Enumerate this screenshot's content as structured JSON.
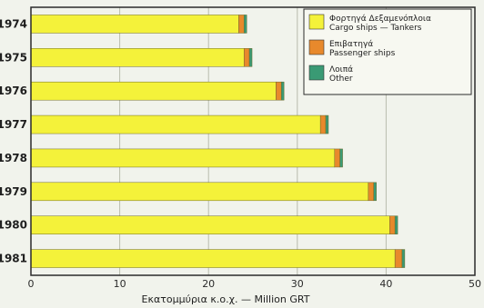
{
  "chart_data": {
    "type": "bar",
    "orientation": "horizontal",
    "stacked": true,
    "categories": [
      "1974",
      "1975",
      "1976",
      "1977",
      "1978",
      "1979",
      "1980",
      "1981"
    ],
    "series": [
      {
        "name": "Φορτηγά Δεξαμενόπλοια Cargo ships — Tankers",
        "color": "#f4f23a",
        "values": [
          23.4,
          24.0,
          27.6,
          32.6,
          34.2,
          38.0,
          40.4,
          41.0
        ]
      },
      {
        "name": "Επιβατηγά Passenger ships",
        "color": "#e8892c",
        "values": [
          0.6,
          0.6,
          0.6,
          0.6,
          0.6,
          0.6,
          0.6,
          0.8
        ]
      },
      {
        "name": "Λοιπά Other",
        "color": "#3a9a74",
        "values": [
          0.3,
          0.3,
          0.3,
          0.3,
          0.3,
          0.3,
          0.3,
          0.3
        ]
      }
    ],
    "xlim": [
      0,
      50
    ],
    "xticks": [
      0,
      10,
      20,
      30,
      40,
      50
    ],
    "xlabel": "Εκατομμύρια κ.ο.χ. — Million GRT",
    "grid": true,
    "legend_position": "top-right",
    "legend": [
      {
        "line1": "Φορτηγά        Δεξαμενόπλοια",
        "line2": "Cargo ships — Tankers",
        "color": "#f4f23a"
      },
      {
        "line1": "Επιβατηγά",
        "line2": "Passenger ships",
        "color": "#e8892c"
      },
      {
        "line1": "Λοιπά",
        "line2": "Other",
        "color": "#3a9a74"
      }
    ],
    "colors": {
      "background": "#f1f3ec",
      "grid": "#b8bcae",
      "frame": "#2b2b2b"
    }
  }
}
